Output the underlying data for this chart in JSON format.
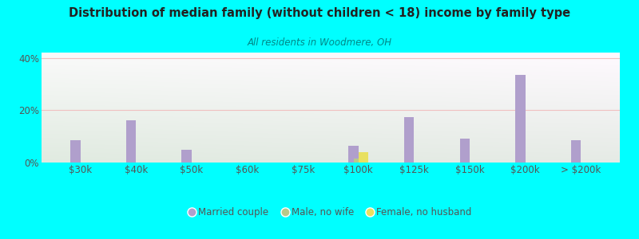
{
  "title": "Distribution of median family (without children < 18) income by family type",
  "subtitle": "All residents in Woodmere, OH",
  "background_color": "#00FFFF",
  "categories": [
    "$30k",
    "$40k",
    "$50k",
    "$60k",
    "$75k",
    "$100k",
    "$125k",
    "$150k",
    "$200k",
    "> $200k"
  ],
  "married_couple": [
    8.5,
    16.0,
    5.0,
    0.0,
    0.0,
    6.5,
    17.5,
    9.0,
    33.5,
    8.5
  ],
  "male_no_wife": [
    0.0,
    0.0,
    0.0,
    0.0,
    0.0,
    1.5,
    0.0,
    0.0,
    0.0,
    0.0
  ],
  "female_no_husband": [
    0.0,
    0.0,
    0.0,
    0.0,
    0.0,
    4.0,
    0.0,
    0.0,
    0.0,
    0.0
  ],
  "married_color": "#b09fcc",
  "male_color": "#b8c98a",
  "female_color": "#e8e060",
  "ylim": [
    0,
    42
  ],
  "yticks": [
    0,
    20,
    40
  ],
  "ytick_labels": [
    "0%",
    "20%",
    "40%"
  ],
  "grid_color": "#f0c0c0",
  "bar_width": 0.18,
  "title_color": "#222222",
  "subtitle_color": "#008888",
  "tick_color": "#555555"
}
